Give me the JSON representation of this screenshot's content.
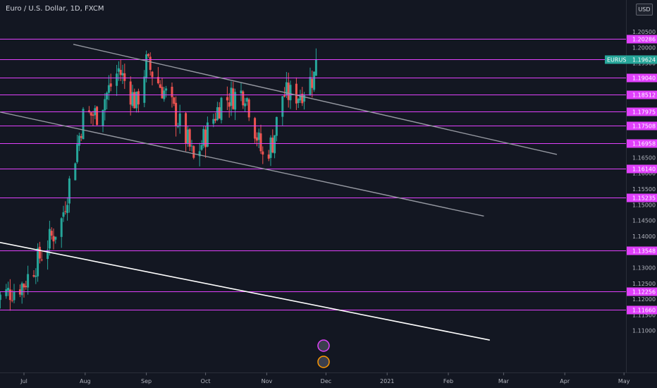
{
  "header": {
    "title": "Euro / U.S. Dollar, 1D, FXCM",
    "currency_button": "USD"
  },
  "colors": {
    "background": "#131722",
    "up_candle": "#26a69a",
    "down_candle": "#ef5350",
    "level_line": "#e040fb",
    "trend_line_gray": "#9598a1",
    "trend_line_white": "#ffffff",
    "symbol_label": "#26a69a"
  },
  "chart_data": {
    "type": "candlestick",
    "symbol": "EURUSD",
    "timeframe": "1D",
    "x_ticks": [
      "Jul",
      "Aug",
      "Sep",
      "Oct",
      "Nov",
      "Dec",
      "2021",
      "Feb",
      "Mar",
      "Apr",
      "May"
    ],
    "y_ticks": [
      "1.20500",
      "1.20000",
      "1.19500",
      "1.19000",
      "1.18500",
      "1.18000",
      "1.17500",
      "1.17000",
      "1.16500",
      "1.16000",
      "1.15500",
      "1.15000",
      "1.14500",
      "1.14000",
      "1.13500",
      "1.13000",
      "1.12500",
      "1.12000",
      "1.11500",
      "1.11000"
    ],
    "ylim": [
      1.107,
      1.209
    ],
    "current_price": {
      "symbol": "EURUSD",
      "value": "1.19624"
    },
    "horizontal_levels": [
      {
        "label": "1.20286",
        "value": 1.20286
      },
      {
        "label": "1.19636",
        "value": 1.19636
      },
      {
        "label": "1.19040",
        "value": 1.1904
      },
      {
        "label": "1.18512",
        "value": 1.18512
      },
      {
        "label": "1.17975",
        "value": 1.17975
      },
      {
        "label": "1.17508",
        "value": 1.17508
      },
      {
        "label": "1.16958",
        "value": 1.16958
      },
      {
        "label": "1.16140",
        "value": 1.1614
      },
      {
        "label": "1.15235",
        "value": 1.15235
      },
      {
        "label": "1.13548",
        "value": 1.13548
      },
      {
        "label": "1.12256",
        "value": 1.12256
      },
      {
        "label": "1.11660",
        "value": 1.1166
      }
    ],
    "trend_lines": [
      {
        "color": "gray",
        "from": {
          "date": "2020-07-26",
          "price": 1.201
        },
        "to": {
          "date": "2021-03-28",
          "price": 1.166
        }
      },
      {
        "color": "gray",
        "from": {
          "date": "2020-06-15",
          "price": 1.18
        },
        "to": {
          "date": "2021-02-19",
          "price": 1.1464
        }
      },
      {
        "color": "white",
        "from": {
          "date": "2020-06-15",
          "price": 1.1385
        },
        "to": {
          "date": "2021-02-22",
          "price": 1.107
        }
      }
    ],
    "candles_summary": {
      "start_date": "2020-06-17",
      "end_date": "2020-11-26",
      "anchors": [
        {
          "date": "2020-06-17",
          "close": 1.12
        },
        {
          "date": "2020-07-01",
          "close": 1.125
        },
        {
          "date": "2020-07-20",
          "close": 1.145
        },
        {
          "date": "2020-07-31",
          "close": 1.178
        },
        {
          "date": "2020-08-07",
          "close": 1.179
        },
        {
          "date": "2020-08-18",
          "close": 1.193
        },
        {
          "date": "2020-08-27",
          "close": 1.182
        },
        {
          "date": "2020-09-01",
          "close": 1.195
        },
        {
          "date": "2020-09-11",
          "close": 1.185
        },
        {
          "date": "2020-09-22",
          "close": 1.17
        },
        {
          "date": "2020-09-25",
          "close": 1.164
        },
        {
          "date": "2020-10-09",
          "close": 1.183
        },
        {
          "date": "2020-10-21",
          "close": 1.186
        },
        {
          "date": "2020-10-30",
          "close": 1.165
        },
        {
          "date": "2020-11-04",
          "close": 1.17
        },
        {
          "date": "2020-11-09",
          "close": 1.185
        },
        {
          "date": "2020-11-17",
          "close": 1.185
        },
        {
          "date": "2020-11-25",
          "close": 1.191
        },
        {
          "date": "2020-11-26",
          "close": 1.1962
        }
      ]
    },
    "grid": false,
    "legend": "none"
  }
}
